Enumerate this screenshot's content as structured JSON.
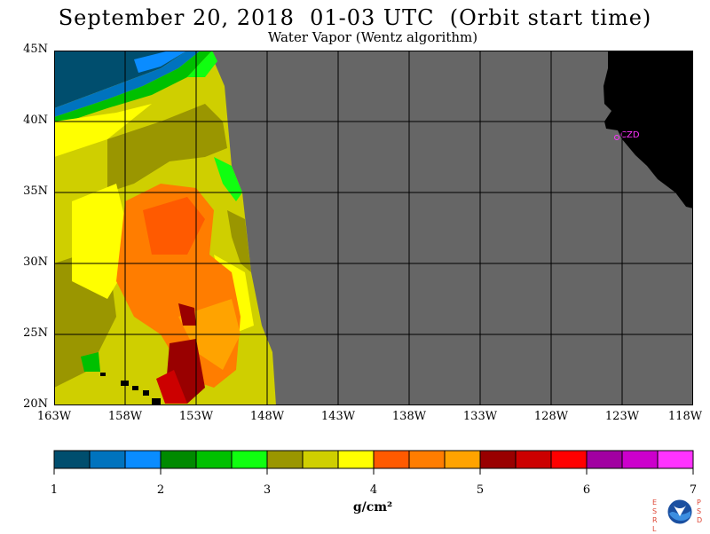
{
  "title": "September 20, 2018  01-03 UTC  (Orbit start time)",
  "subtitle": "Water Vapor (Wentz algorithm)",
  "map": {
    "lat_labels": [
      "45N",
      "40N",
      "35N",
      "30N",
      "25N",
      "20N"
    ],
    "lon_labels": [
      "163W",
      "158W",
      "153W",
      "148W",
      "143W",
      "138W",
      "133W",
      "128W",
      "123W",
      "118W"
    ],
    "station_label": "CZD",
    "colors": {
      "no_data": "#666666",
      "land": "#000000",
      "grid": "#000000",
      "station": "#ff33ff"
    }
  },
  "colorbar": {
    "ticks": [
      "1",
      "2",
      "3",
      "4",
      "5",
      "6",
      "7"
    ],
    "units": "g/cm²",
    "colors": [
      "#004e6e",
      "#0073be",
      "#0a8cff",
      "#008a00",
      "#00c000",
      "#10ff10",
      "#9a9600",
      "#cfcf00",
      "#ffff00",
      "#ff5a00",
      "#ff7d00",
      "#ffa300",
      "#990000",
      "#cc0000",
      "#ff0000",
      "#a100a1",
      "#cc00cc",
      "#ff33ff"
    ]
  },
  "logo": {
    "left_letters": [
      "E",
      "S",
      "R",
      "L"
    ],
    "right_letters": [
      "P",
      "S",
      "D"
    ],
    "name": "NOAA"
  }
}
